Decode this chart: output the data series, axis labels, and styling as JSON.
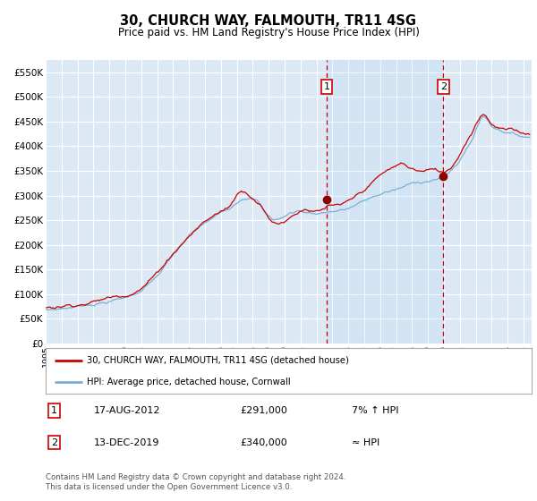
{
  "title": "30, CHURCH WAY, FALMOUTH, TR11 4SG",
  "subtitle": "Price paid vs. HM Land Registry's House Price Index (HPI)",
  "red_label": "30, CHURCH WAY, FALMOUTH, TR11 4SG (detached house)",
  "blue_label": "HPI: Average price, detached house, Cornwall",
  "sale1_date": "17-AUG-2012",
  "sale1_price": "£291,000",
  "sale1_note": "7% ↑ HPI",
  "sale2_date": "13-DEC-2019",
  "sale2_price": "£340,000",
  "sale2_note": "≈ HPI",
  "footer1": "Contains HM Land Registry data © Crown copyright and database right 2024.",
  "footer2": "This data is licensed under the Open Government Licence v3.0.",
  "ylim": [
    0,
    575000
  ],
  "ytick_vals": [
    0,
    50000,
    100000,
    150000,
    200000,
    250000,
    300000,
    350000,
    400000,
    450000,
    500000,
    550000
  ],
  "ytick_labels": [
    "£0",
    "£50K",
    "£100K",
    "£150K",
    "£200K",
    "£250K",
    "£300K",
    "£350K",
    "£400K",
    "£450K",
    "£500K",
    "£550K"
  ],
  "xlim_start": 1995,
  "xlim_end": 2025.5,
  "background_color": "#ffffff",
  "plot_bg_color": "#dce9f5",
  "grid_color": "#ffffff",
  "red_color": "#cc0000",
  "blue_color": "#7bafd4",
  "marker1_x_year": 2012.63,
  "marker1_y": 291000,
  "marker2_x_year": 2019.96,
  "marker2_y": 340000,
  "vline1_year": 2012.63,
  "vline2_year": 2019.96,
  "blue_keypoints": [
    [
      1995.0,
      68000
    ],
    [
      1995.5,
      69000
    ],
    [
      1996.0,
      71000
    ],
    [
      1997.0,
      76000
    ],
    [
      1998.0,
      82000
    ],
    [
      1999.0,
      88000
    ],
    [
      2000.0,
      95000
    ],
    [
      2001.0,
      110000
    ],
    [
      2002.0,
      138000
    ],
    [
      2003.0,
      178000
    ],
    [
      2004.0,
      215000
    ],
    [
      2004.8,
      235000
    ],
    [
      2005.5,
      248000
    ],
    [
      2006.5,
      268000
    ],
    [
      2007.3,
      292000
    ],
    [
      2007.8,
      298000
    ],
    [
      2008.3,
      290000
    ],
    [
      2008.8,
      262000
    ],
    [
      2009.3,
      250000
    ],
    [
      2009.8,
      253000
    ],
    [
      2010.3,
      262000
    ],
    [
      2010.8,
      268000
    ],
    [
      2011.3,
      265000
    ],
    [
      2011.8,
      263000
    ],
    [
      2012.3,
      265000
    ],
    [
      2012.8,
      268000
    ],
    [
      2013.3,
      270000
    ],
    [
      2013.8,
      272000
    ],
    [
      2014.3,
      278000
    ],
    [
      2014.8,
      285000
    ],
    [
      2015.3,
      292000
    ],
    [
      2015.8,
      298000
    ],
    [
      2016.3,
      305000
    ],
    [
      2016.8,
      308000
    ],
    [
      2017.3,
      312000
    ],
    [
      2017.8,
      318000
    ],
    [
      2018.3,
      322000
    ],
    [
      2018.8,
      326000
    ],
    [
      2019.3,
      330000
    ],
    [
      2019.8,
      333000
    ],
    [
      2020.3,
      342000
    ],
    [
      2020.8,
      358000
    ],
    [
      2021.3,
      385000
    ],
    [
      2021.8,
      410000
    ],
    [
      2022.0,
      430000
    ],
    [
      2022.3,
      452000
    ],
    [
      2022.5,
      458000
    ],
    [
      2022.8,
      448000
    ],
    [
      2023.0,
      438000
    ],
    [
      2023.5,
      432000
    ],
    [
      2024.0,
      428000
    ],
    [
      2024.5,
      422000
    ],
    [
      2025.2,
      418000
    ]
  ],
  "red_keypoints": [
    [
      1995.0,
      72000
    ],
    [
      1995.5,
      73500
    ],
    [
      1996.0,
      76000
    ],
    [
      1997.0,
      82000
    ],
    [
      1998.0,
      88000
    ],
    [
      1999.0,
      95000
    ],
    [
      2000.0,
      103000
    ],
    [
      2001.0,
      120000
    ],
    [
      2002.0,
      150000
    ],
    [
      2003.0,
      192000
    ],
    [
      2004.0,
      228000
    ],
    [
      2004.8,
      252000
    ],
    [
      2005.5,
      268000
    ],
    [
      2006.5,
      285000
    ],
    [
      2007.0,
      310000
    ],
    [
      2007.3,
      322000
    ],
    [
      2007.6,
      318000
    ],
    [
      2008.0,
      310000
    ],
    [
      2008.5,
      295000
    ],
    [
      2008.8,
      278000
    ],
    [
      2009.0,
      268000
    ],
    [
      2009.3,
      260000
    ],
    [
      2009.6,
      258000
    ],
    [
      2009.9,
      262000
    ],
    [
      2010.3,
      272000
    ],
    [
      2010.8,
      282000
    ],
    [
      2011.2,
      292000
    ],
    [
      2011.5,
      290000
    ],
    [
      2011.8,
      285000
    ],
    [
      2012.2,
      284000
    ],
    [
      2012.5,
      286000
    ],
    [
      2012.63,
      291000
    ],
    [
      2013.0,
      293000
    ],
    [
      2013.3,
      290000
    ],
    [
      2013.6,
      288000
    ],
    [
      2014.0,
      293000
    ],
    [
      2014.5,
      302000
    ],
    [
      2015.0,
      315000
    ],
    [
      2015.5,
      328000
    ],
    [
      2016.0,
      342000
    ],
    [
      2016.5,
      350000
    ],
    [
      2017.0,
      358000
    ],
    [
      2017.3,
      362000
    ],
    [
      2017.6,
      358000
    ],
    [
      2017.9,
      352000
    ],
    [
      2018.3,
      348000
    ],
    [
      2018.7,
      345000
    ],
    [
      2019.0,
      348000
    ],
    [
      2019.5,
      345000
    ],
    [
      2019.96,
      340000
    ],
    [
      2020.1,
      342000
    ],
    [
      2020.4,
      350000
    ],
    [
      2020.8,
      368000
    ],
    [
      2021.2,
      395000
    ],
    [
      2021.6,
      418000
    ],
    [
      2022.0,
      445000
    ],
    [
      2022.3,
      462000
    ],
    [
      2022.5,
      468000
    ],
    [
      2022.7,
      462000
    ],
    [
      2022.9,
      452000
    ],
    [
      2023.1,
      445000
    ],
    [
      2023.4,
      440000
    ],
    [
      2023.8,
      435000
    ],
    [
      2024.2,
      432000
    ],
    [
      2024.6,
      428000
    ],
    [
      2025.2,
      424000
    ]
  ]
}
